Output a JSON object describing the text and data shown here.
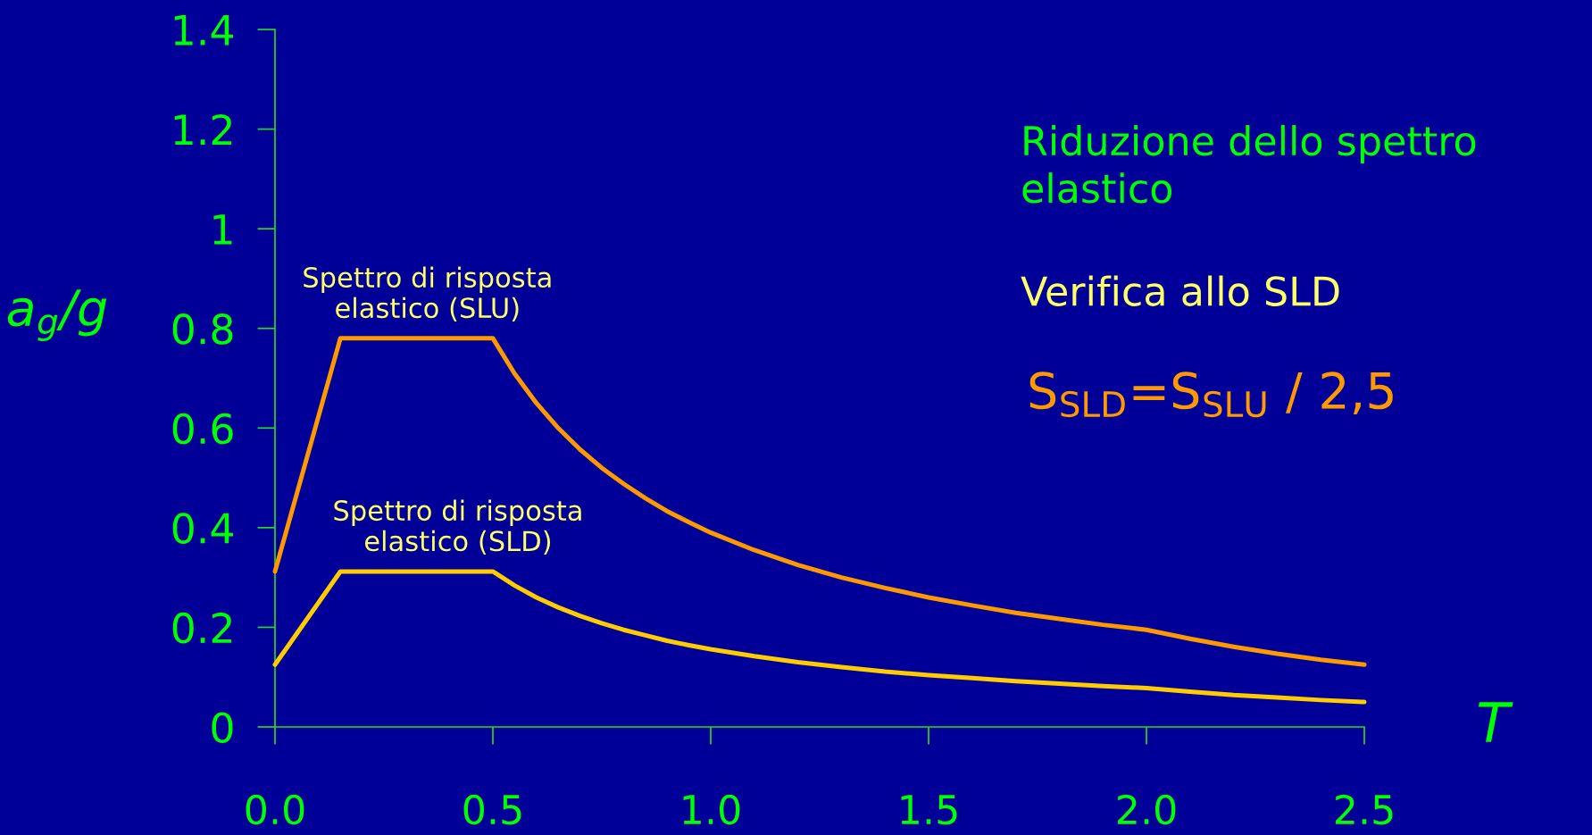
{
  "chart_data": {
    "type": "line",
    "x": [
      0,
      0.15,
      0.5,
      0.55,
      0.6,
      0.65,
      0.7,
      0.75,
      0.8,
      0.85,
      0.9,
      0.95,
      1.0,
      1.1,
      1.2,
      1.3,
      1.4,
      1.5,
      1.6,
      1.7,
      1.8,
      1.9,
      2.0,
      2.1,
      2.2,
      2.3,
      2.4,
      2.5
    ],
    "series": [
      {
        "color": "#ff9900",
        "values": [
          0.312,
          0.78,
          0.78,
          0.709,
          0.65,
          0.6,
          0.557,
          0.52,
          0.488,
          0.459,
          0.433,
          0.411,
          0.39,
          0.355,
          0.325,
          0.3,
          0.279,
          0.26,
          0.244,
          0.229,
          0.217,
          0.205,
          0.195,
          0.177,
          0.161,
          0.147,
          0.135,
          0.125
        ]
      },
      {
        "color": "#ffcc00",
        "values": [
          0.125,
          0.312,
          0.312,
          0.284,
          0.26,
          0.24,
          0.223,
          0.208,
          0.195,
          0.184,
          0.173,
          0.164,
          0.156,
          0.142,
          0.13,
          0.12,
          0.111,
          0.104,
          0.098,
          0.092,
          0.087,
          0.082,
          0.078,
          0.071,
          0.064,
          0.059,
          0.054,
          0.05
        ]
      }
    ],
    "xlabel": "T",
    "ylabel": "a$_{g}$/g",
    "xlim": [
      0,
      2.5
    ],
    "ylim": [
      0,
      1.4
    ],
    "xticks": [
      {
        "value": 0,
        "label": "0.0"
      },
      0.5,
      {
        "value": 1,
        "label": "1.0"
      },
      1.5,
      {
        "value": 2,
        "label": "2.0"
      },
      2.5
    ],
    "yticks": [
      0,
      0.2,
      0.4,
      0.6,
      0.8,
      1,
      1.2,
      1.4
    ],
    "line_style": "solid",
    "annotations": [
      {
        "text": "Spettro di risposta\nelastico (SLU)",
        "x": 0.35,
        "y": 0.78
      },
      {
        "text": "Spettro di risposta\nelastico (SLD)",
        "x": 0.42,
        "y": 0.312
      },
      "Riduzione dello spettro\nelastico",
      "Verifica allo SLD",
      "S$_{SLD}$=S$_{SLU}$ / 2,5"
    ]
  }
}
